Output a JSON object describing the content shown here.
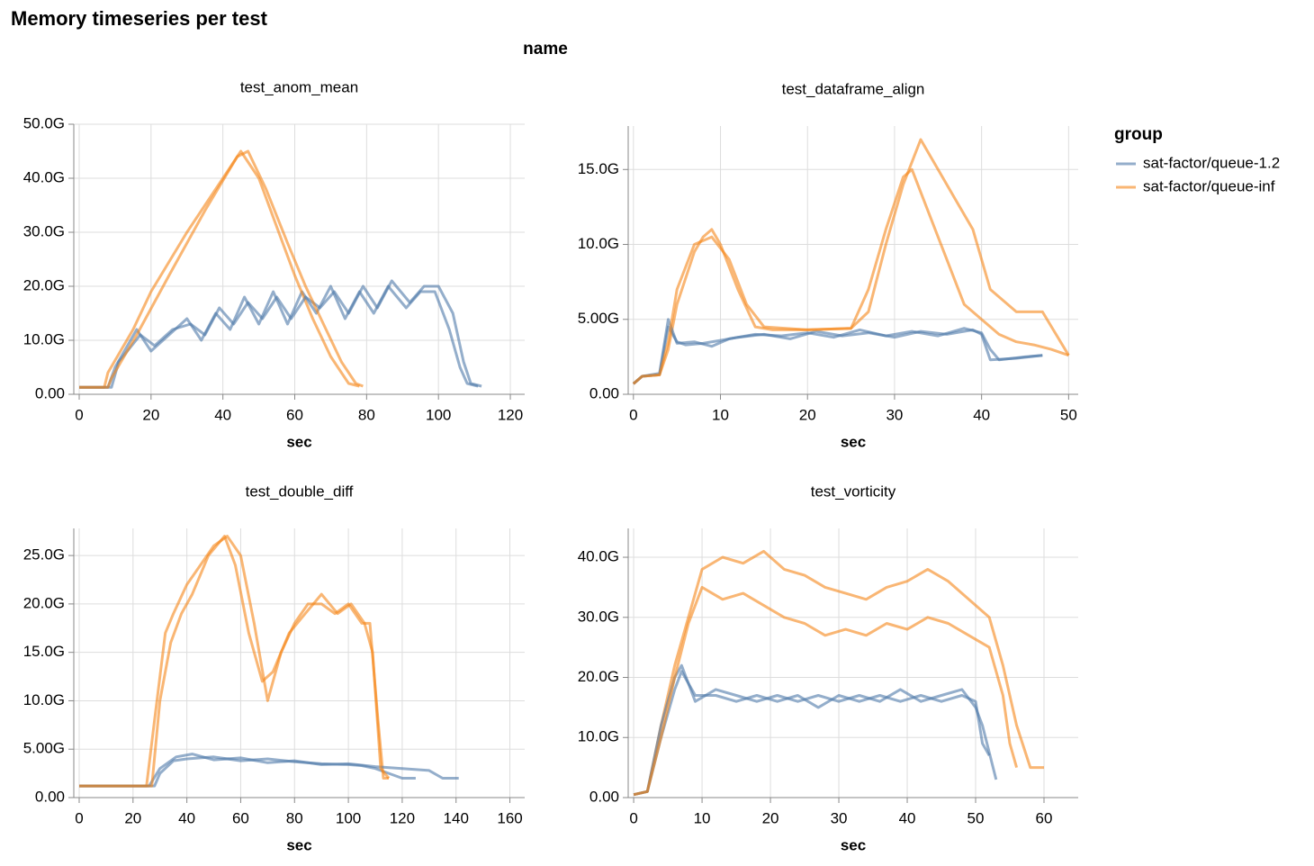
{
  "title": "Memory timeseries per test",
  "facet_header": "name",
  "legend_title": "group",
  "chart_data": [
    {
      "type": "line",
      "title": "test_anom_mean",
      "x_label": "sec",
      "grid": true,
      "xlim": [
        -1.5,
        124
      ],
      "xticks": [
        0,
        20,
        40,
        60,
        80,
        100,
        120
      ],
      "ylim": [
        0,
        50
      ],
      "yticks": [
        {
          "value": 0,
          "label": "0.00"
        },
        {
          "value": 10,
          "label": "10.0G"
        },
        {
          "value": 20,
          "label": "20.0G"
        },
        {
          "value": 30,
          "label": "30.0G"
        },
        {
          "value": 40,
          "label": "40.0G"
        },
        {
          "value": 50,
          "label": "50.0G"
        }
      ],
      "series": [
        {
          "name": "sat-factor/queue-1.2",
          "color": "#4c78a8",
          "x": [
            0,
            8,
            10,
            16,
            20,
            25,
            30,
            34,
            38,
            42,
            46,
            50,
            54,
            58,
            62,
            66,
            70,
            74,
            78,
            82,
            86,
            91,
            95,
            99,
            103,
            106,
            108,
            111
          ],
          "values": [
            1.3,
            1.3,
            5,
            12,
            8,
            11,
            14,
            10,
            15,
            12,
            18,
            13,
            19,
            13,
            19,
            15,
            20,
            14,
            19,
            15,
            20,
            16,
            19,
            19,
            12,
            5,
            2,
            1.5
          ]
        },
        {
          "name": "sat-factor/queue-inf",
          "color": "#f58518",
          "x": [
            0,
            7,
            8,
            15,
            20,
            30,
            40,
            45,
            50,
            55,
            60,
            65,
            70,
            75,
            78
          ],
          "values": [
            1.3,
            1.3,
            4,
            12,
            19,
            30,
            40,
            45,
            40,
            31,
            22,
            14,
            7,
            2,
            1.5
          ]
        },
        {
          "name": "sat-factor/queue-1.2",
          "color": "#4c78a8",
          "x": [
            0,
            9,
            11,
            17,
            21,
            26,
            31,
            35,
            39,
            43,
            47,
            51,
            55,
            59,
            63,
            67,
            71,
            75,
            79,
            83,
            87,
            92,
            96,
            100,
            104,
            107,
            109,
            112
          ],
          "values": [
            1.3,
            1.3,
            6,
            11,
            9,
            12,
            13,
            11,
            16,
            13,
            17,
            14,
            18,
            14,
            18,
            16,
            19,
            15,
            20,
            16,
            21,
            17,
            20,
            20,
            15,
            6,
            2,
            1.5
          ]
        },
        {
          "name": "sat-factor/queue-inf",
          "color": "#f58518",
          "x": [
            0,
            8,
            9,
            16,
            25,
            35,
            44,
            47,
            52,
            58,
            63,
            68,
            73,
            77,
            79
          ],
          "values": [
            1.3,
            1.3,
            3,
            11,
            22,
            34,
            44,
            45,
            38,
            28,
            20,
            13,
            6,
            2,
            1.5
          ]
        }
      ]
    },
    {
      "type": "line",
      "title": "test_dataframe_align",
      "x_label": "sec",
      "grid": true,
      "xlim": [
        -0.6,
        51.1
      ],
      "xticks": [
        0,
        10,
        20,
        30,
        40,
        50
      ],
      "ylim": [
        0,
        17.9
      ],
      "yticks": [
        {
          "value": 0,
          "label": "0.00"
        },
        {
          "value": 5,
          "label": "5.00G"
        },
        {
          "value": 10,
          "label": "10.0G"
        },
        {
          "value": 15,
          "label": "15.0G"
        }
      ],
      "series": [
        {
          "name": "sat-factor/queue-1.2",
          "color": "#4c78a8",
          "x": [
            0,
            1,
            3,
            4,
            5,
            6,
            8,
            10,
            12,
            15,
            18,
            21,
            24,
            27,
            30,
            33,
            36,
            39,
            40,
            41,
            44,
            47
          ],
          "values": [
            0.7,
            1.2,
            1.3,
            4.5,
            3.5,
            3.3,
            3.4,
            3.6,
            3.8,
            4,
            3.7,
            4.2,
            3.9,
            4.1,
            3.8,
            4.2,
            4,
            4.3,
            4,
            2.3,
            2.4,
            2.6
          ]
        },
        {
          "name": "sat-factor/queue-inf",
          "color": "#f58518",
          "x": [
            0,
            1,
            3,
            4,
            5,
            7,
            8,
            9,
            10,
            12,
            14,
            16,
            20,
            25,
            27,
            29,
            31,
            33,
            35,
            37,
            39,
            41,
            44,
            47,
            50
          ],
          "values": [
            0.7,
            1.2,
            1.3,
            3,
            6,
            9.5,
            10.5,
            11,
            10,
            7,
            4.5,
            4.3,
            4.3,
            4.4,
            5.5,
            10,
            14,
            17,
            15,
            13,
            11,
            7,
            5.5,
            5.5,
            2.6
          ]
        },
        {
          "name": "sat-factor/queue-1.2",
          "color": "#4c78a8",
          "x": [
            0,
            1,
            3,
            4,
            5,
            7,
            9,
            11,
            14,
            17,
            20,
            23,
            26,
            29,
            32,
            35,
            38,
            40,
            41,
            42,
            45,
            47
          ],
          "values": [
            0.7,
            1.2,
            1.4,
            5,
            3.4,
            3.5,
            3.2,
            3.7,
            4,
            3.9,
            4.1,
            3.8,
            4.3,
            3.9,
            4.2,
            3.9,
            4.4,
            4.1,
            3,
            2.3,
            2.5,
            2.6
          ]
        },
        {
          "name": "sat-factor/queue-inf",
          "color": "#f58518",
          "x": [
            0,
            1,
            3,
            4,
            5,
            7,
            9,
            11,
            13,
            15,
            20,
            25,
            27,
            29,
            31,
            32,
            34,
            36,
            38,
            40,
            42,
            44,
            46,
            48,
            50
          ],
          "values": [
            0.7,
            1.2,
            1.3,
            3.5,
            7,
            10,
            10.5,
            9,
            6,
            4.5,
            4.3,
            4.4,
            7,
            11,
            14.5,
            15,
            12,
            9,
            6,
            5,
            4,
            3.5,
            3.3,
            3,
            2.6
          ]
        }
      ]
    },
    {
      "type": "line",
      "title": "test_double_diff",
      "x_label": "sec",
      "grid": true,
      "xlim": [
        -2,
        165.5
      ],
      "xticks": [
        0,
        20,
        40,
        60,
        80,
        100,
        120,
        140,
        160
      ],
      "ylim": [
        0,
        27.8
      ],
      "yticks": [
        {
          "value": 0,
          "label": "0.00"
        },
        {
          "value": 5,
          "label": "5.00G"
        },
        {
          "value": 10,
          "label": "10.0G"
        },
        {
          "value": 15,
          "label": "15.0G"
        },
        {
          "value": 20,
          "label": "20.0G"
        },
        {
          "value": 25,
          "label": "25.0G"
        }
      ],
      "series": [
        {
          "name": "sat-factor/queue-1.2",
          "color": "#4c78a8",
          "x": [
            0,
            28,
            30,
            35,
            40,
            50,
            60,
            70,
            80,
            90,
            100,
            105,
            110,
            115,
            120,
            125
          ],
          "values": [
            1.2,
            1.2,
            2.5,
            3.8,
            4,
            4.2,
            3.8,
            4,
            3.7,
            3.5,
            3.4,
            3.3,
            3,
            2.5,
            2,
            2
          ]
        },
        {
          "name": "sat-factor/queue-inf",
          "color": "#f58518",
          "x": [
            0,
            25,
            28,
            32,
            35,
            40,
            45,
            50,
            55,
            60,
            65,
            70,
            75,
            80,
            85,
            90,
            95,
            100,
            105,
            108,
            111,
            113,
            115
          ],
          "values": [
            1.2,
            1.2,
            8,
            17,
            19,
            22,
            24,
            26,
            27,
            25,
            18,
            10,
            15,
            18,
            20,
            20,
            19,
            20,
            18,
            18,
            8,
            2,
            2
          ]
        },
        {
          "name": "sat-factor/queue-1.2",
          "color": "#4c78a8",
          "x": [
            0,
            26,
            30,
            36,
            42,
            50,
            60,
            70,
            80,
            90,
            100,
            110,
            120,
            130,
            135,
            141
          ],
          "values": [
            1.2,
            1.2,
            3,
            4.2,
            4.5,
            3.9,
            4.1,
            3.6,
            3.8,
            3.4,
            3.5,
            3.2,
            3,
            2.8,
            2,
            2
          ]
        },
        {
          "name": "sat-factor/queue-inf",
          "color": "#f58518",
          "x": [
            0,
            27,
            30,
            34,
            38,
            42,
            48,
            54,
            58,
            63,
            68,
            72,
            78,
            84,
            90,
            96,
            101,
            106,
            109,
            112,
            115
          ],
          "values": [
            1.2,
            1.2,
            10,
            16,
            19,
            21,
            25,
            27,
            24,
            17,
            12,
            13,
            17,
            19,
            21,
            19,
            20,
            18,
            15,
            3,
            2
          ]
        }
      ]
    },
    {
      "type": "line",
      "title": "test_vorticity",
      "x_label": "sec",
      "grid": true,
      "xlim": [
        -0.8,
        65
      ],
      "xticks": [
        0,
        10,
        20,
        30,
        40,
        50,
        60
      ],
      "ylim": [
        0,
        44.8
      ],
      "yticks": [
        {
          "value": 0,
          "label": "0.00"
        },
        {
          "value": 10,
          "label": "10.0G"
        },
        {
          "value": 20,
          "label": "20.0G"
        },
        {
          "value": 30,
          "label": "30.0G"
        },
        {
          "value": 40,
          "label": "40.0G"
        }
      ],
      "series": [
        {
          "name": "sat-factor/queue-1.2",
          "color": "#4c78a8",
          "x": [
            0,
            2,
            4,
            6,
            7,
            9,
            12,
            15,
            18,
            21,
            24,
            27,
            30,
            33,
            36,
            39,
            42,
            45,
            48,
            50,
            51,
            52
          ],
          "values": [
            0.5,
            1,
            10,
            18,
            21,
            17,
            17,
            16,
            17,
            16,
            17,
            15,
            17,
            16,
            17,
            16,
            17,
            16,
            17,
            16,
            9,
            7
          ]
        },
        {
          "name": "sat-factor/queue-inf",
          "color": "#f58518",
          "x": [
            0,
            2,
            4,
            6,
            8,
            10,
            13,
            16,
            19,
            22,
            25,
            28,
            31,
            34,
            37,
            40,
            43,
            46,
            49,
            52,
            54,
            56,
            58,
            60
          ],
          "values": [
            0.5,
            1,
            12,
            22,
            30,
            38,
            40,
            39,
            41,
            38,
            37,
            35,
            34,
            33,
            35,
            36,
            38,
            36,
            33,
            30,
            22,
            12,
            5,
            5
          ]
        },
        {
          "name": "sat-factor/queue-1.2",
          "color": "#4c78a8",
          "x": [
            0,
            2,
            4,
            6,
            7,
            9,
            12,
            15,
            18,
            21,
            24,
            27,
            30,
            33,
            36,
            39,
            42,
            45,
            48,
            50,
            51,
            53
          ],
          "values": [
            0.5,
            1,
            12,
            20,
            22,
            16,
            18,
            17,
            16,
            17,
            16,
            17,
            16,
            17,
            16,
            18,
            16,
            17,
            18,
            15,
            12,
            3
          ]
        },
        {
          "name": "sat-factor/queue-inf",
          "color": "#f58518",
          "x": [
            0,
            2,
            4,
            6,
            8,
            10,
            13,
            16,
            19,
            22,
            25,
            28,
            31,
            34,
            37,
            40,
            43,
            46,
            49,
            52,
            54,
            55,
            56
          ],
          "values": [
            0.5,
            1,
            10,
            20,
            29,
            35,
            33,
            34,
            32,
            30,
            29,
            27,
            28,
            27,
            29,
            28,
            30,
            29,
            27,
            25,
            17,
            9,
            5
          ]
        }
      ]
    }
  ]
}
